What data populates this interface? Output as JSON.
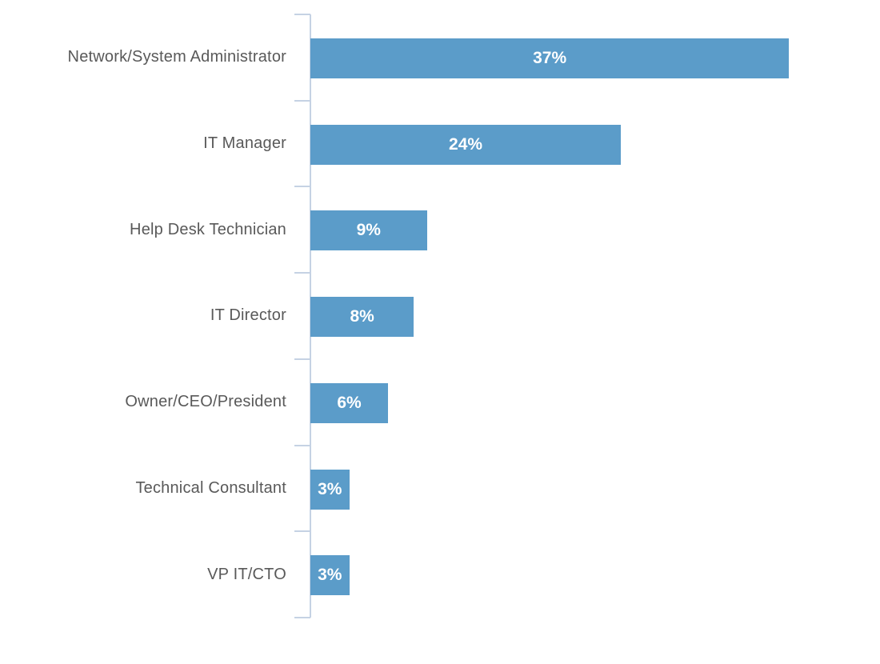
{
  "chart_data": {
    "type": "bar",
    "orientation": "horizontal",
    "title": "",
    "xlabel": "",
    "ylabel": "",
    "categories": [
      "Network/System Administrator",
      "IT Manager",
      "Help Desk Technician",
      "IT Director",
      "Owner/CEO/President",
      "Technical Consultant",
      "VP IT/CTO"
    ],
    "values": [
      37,
      24,
      9,
      8,
      6,
      3,
      3
    ],
    "value_labels": [
      "37%",
      "24%",
      "9%",
      "8%",
      "6%",
      "3%",
      "3%"
    ],
    "xlim": [
      0,
      44
    ],
    "grid": false,
    "legend": false,
    "bar_color": "#5B9CC9",
    "bar_label_color": "#FFFFFF",
    "category_label_color": "#595959",
    "axis_line_color": "#C5D2E4"
  }
}
